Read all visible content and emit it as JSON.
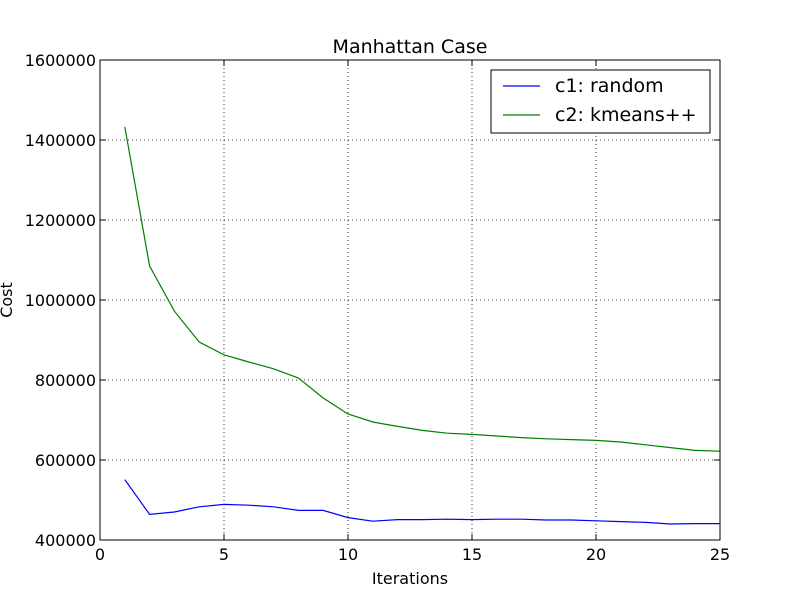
{
  "chart_data": {
    "type": "line",
    "title": "Manhattan Case",
    "xlabel": "Iterations",
    "ylabel": "Cost",
    "xlim": [
      0,
      25
    ],
    "ylim": [
      400000,
      1600000
    ],
    "x_ticks": [
      0,
      5,
      10,
      15,
      20,
      25
    ],
    "y_ticks": [
      400000,
      600000,
      800000,
      1000000,
      1200000,
      1400000,
      1600000
    ],
    "x_tick_labels": [
      "0",
      "5",
      "10",
      "15",
      "20",
      "25"
    ],
    "y_tick_labels": [
      "400000",
      "600000",
      "800000",
      "1000000",
      "1200000",
      "1400000",
      "1600000"
    ],
    "grid": true,
    "legend_position": "top-right",
    "x": [
      1,
      2,
      3,
      4,
      5,
      6,
      7,
      8,
      9,
      10,
      11,
      12,
      13,
      14,
      15,
      16,
      17,
      18,
      19,
      20,
      21,
      22,
      23,
      24,
      25
    ],
    "series": [
      {
        "name": "c1: random",
        "color": "#0000ff",
        "values": [
          551000,
          464000,
          470000,
          483000,
          489000,
          487000,
          483000,
          474000,
          474000,
          456000,
          447000,
          451000,
          451000,
          452000,
          451000,
          452000,
          452000,
          450000,
          450000,
          448000,
          446000,
          444000,
          440000,
          441000,
          441000
        ]
      },
      {
        "name": "c2: kmeans++",
        "color": "#008000",
        "values": [
          1433000,
          1085000,
          972000,
          895000,
          863000,
          845000,
          828000,
          805000,
          755000,
          715000,
          695000,
          684000,
          674000,
          667000,
          664000,
          660000,
          656000,
          653000,
          651000,
          649000,
          645000,
          638000,
          631000,
          624000,
          622000
        ]
      }
    ]
  }
}
